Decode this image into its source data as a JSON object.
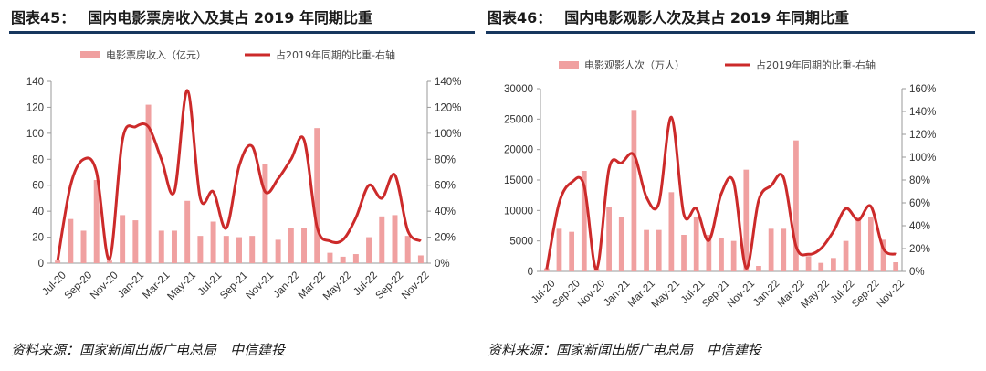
{
  "colors": {
    "bar": "#f0a0a0",
    "line": "#cc2a2a",
    "axis": "#999999",
    "rule": "#17375e",
    "text": "#333333"
  },
  "source": "资料来源：国家新闻出版广电总局　中信建投",
  "chart_data": [
    {
      "type": "bar+line",
      "figure_label": "图表45：",
      "title": "国内电影票房收入及其占 2019 年同期比重",
      "categories": [
        "Jul-20",
        "Aug-20",
        "Sep-20",
        "Oct-20",
        "Nov-20",
        "Dec-20",
        "Jan-21",
        "Feb-21",
        "Mar-21",
        "Apr-21",
        "May-21",
        "Jun-21",
        "Jul-21",
        "Aug-21",
        "Sep-21",
        "Oct-21",
        "Nov-21",
        "Dec-21",
        "Jan-22",
        "Feb-22",
        "Mar-22",
        "Apr-22",
        "May-22",
        "Jun-22",
        "Jul-22",
        "Aug-22",
        "Sep-22",
        "Oct-22",
        "Nov-22"
      ],
      "x_tick_labels": [
        "Jul-20",
        "Sep-20",
        "Nov-20",
        "Jan-21",
        "Mar-21",
        "May-21",
        "Jul-21",
        "Sep-21",
        "Nov-21",
        "Jan-22",
        "Mar-22",
        "May-22",
        "Jul-22",
        "Sep-22",
        "Nov-22"
      ],
      "bar_series": {
        "name": "电影票房收入（亿元）",
        "values": [
          2,
          34,
          25,
          64,
          2,
          37,
          33,
          122,
          25,
          25,
          48,
          21,
          32,
          21,
          20,
          21,
          76,
          18,
          27,
          27,
          104,
          8,
          5,
          7,
          20,
          36,
          37,
          21,
          6
        ]
      },
      "line_series": {
        "name": "占2019年同期的比重-右轴",
        "values": [
          0.02,
          0.6,
          0.8,
          0.7,
          0.03,
          0.95,
          1.05,
          1.05,
          0.8,
          0.55,
          1.33,
          0.5,
          0.55,
          0.27,
          0.75,
          0.9,
          0.55,
          0.65,
          0.8,
          0.95,
          0.28,
          0.17,
          0.18,
          0.35,
          0.6,
          0.5,
          0.68,
          0.25,
          0.17
        ]
      },
      "y_left": {
        "min": 0,
        "max": 140,
        "ticks": [
          0,
          20,
          40,
          60,
          80,
          100,
          120,
          140
        ]
      },
      "y_right": {
        "min": 0,
        "max": 1.4,
        "ticks": [
          "0%",
          "20%",
          "40%",
          "60%",
          "80%",
          "100%",
          "120%",
          "140%"
        ]
      }
    },
    {
      "type": "bar+line",
      "figure_label": "图表46：",
      "title": "国内电影观影人次及其占 2019 年同期比重",
      "categories": [
        "Jul-20",
        "Aug-20",
        "Sep-20",
        "Oct-20",
        "Nov-20",
        "Dec-20",
        "Jan-21",
        "Feb-21",
        "Mar-21",
        "Apr-21",
        "May-21",
        "Jun-21",
        "Jul-21",
        "Aug-21",
        "Sep-21",
        "Oct-21",
        "Nov-21",
        "Dec-21",
        "Jan-22",
        "Feb-22",
        "Mar-22",
        "Apr-22",
        "May-22",
        "Jun-22",
        "Jul-22",
        "Aug-22",
        "Sep-22",
        "Oct-22",
        "Nov-22"
      ],
      "x_tick_labels": [
        "Jul-20",
        "Sep-20",
        "Nov-20",
        "Jan-21",
        "Mar-21",
        "May-21",
        "Jul-21",
        "Sep-21",
        "Nov-21",
        "Jan-22",
        "Mar-22",
        "May-22",
        "Jul-22",
        "Sep-22",
        "Nov-22"
      ],
      "bar_series": {
        "name": "电影观影人次（万人）",
        "values": [
          500,
          7000,
          6500,
          16500,
          500,
          10500,
          9000,
          26500,
          6800,
          6800,
          13000,
          6000,
          9000,
          6000,
          5500,
          5000,
          16700,
          900,
          7000,
          7000,
          21500,
          2500,
          1400,
          2200,
          5000,
          9000,
          9000,
          5200,
          1500
        ]
      },
      "line_series": {
        "name": "占2019年同期的比重-右轴",
        "values": [
          0.02,
          0.6,
          0.78,
          0.75,
          0.02,
          0.9,
          0.95,
          1.02,
          0.65,
          0.6,
          1.35,
          0.5,
          0.55,
          0.27,
          0.68,
          0.78,
          0.03,
          0.62,
          0.75,
          0.82,
          0.22,
          0.15,
          0.2,
          0.35,
          0.55,
          0.45,
          0.57,
          0.2,
          0.15
        ]
      },
      "y_left": {
        "min": 0,
        "max": 30000,
        "ticks": [
          0,
          5000,
          10000,
          15000,
          20000,
          25000,
          30000
        ]
      },
      "y_right": {
        "min": 0,
        "max": 1.6,
        "ticks": [
          "0%",
          "20%",
          "40%",
          "60%",
          "80%",
          "100%",
          "120%",
          "140%",
          "160%"
        ]
      }
    }
  ]
}
